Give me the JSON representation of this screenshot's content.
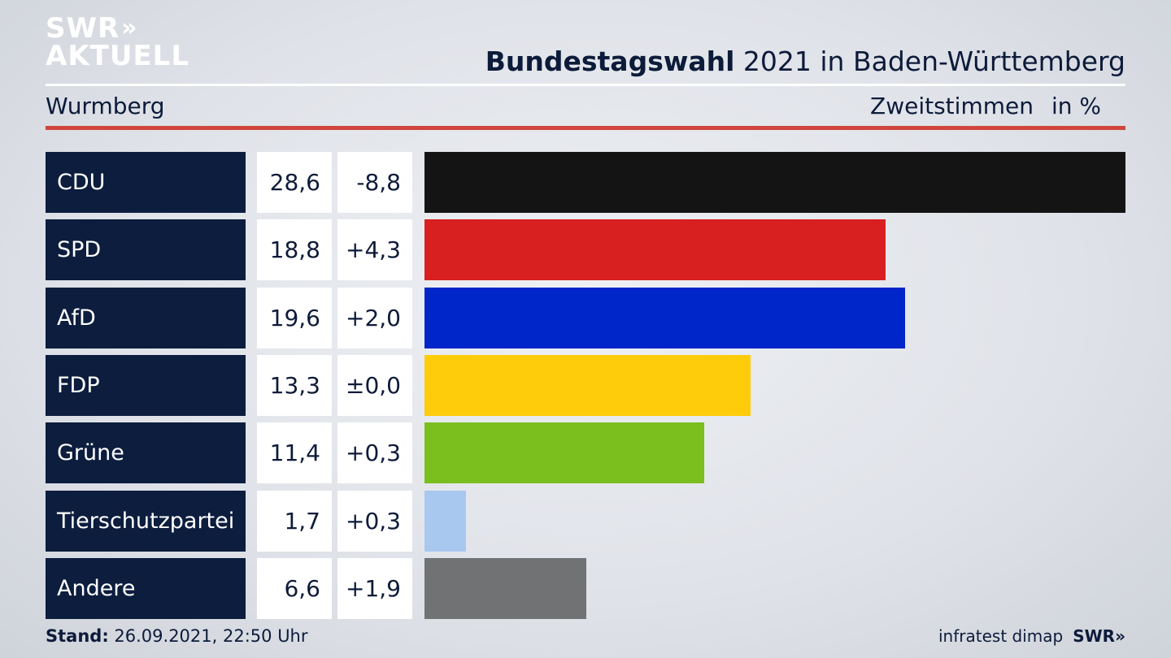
{
  "header": {
    "logo_line1": "SWR",
    "logo_chevrons": "»",
    "logo_line2": "AKTUELL",
    "title_bold": "Bundestagswahl",
    "title_rest": "2021 in Baden-Württemberg",
    "place": "Wurmberg",
    "metric": "Zweitstimmen",
    "unit": "in %"
  },
  "chart_data": {
    "type": "bar",
    "orientation": "horizontal",
    "categories": [
      "CDU",
      "SPD",
      "AfD",
      "FDP",
      "Grüne",
      "Tierschutzpartei",
      "Andere"
    ],
    "values": [
      28.6,
      18.8,
      19.6,
      13.3,
      11.4,
      1.7,
      6.6
    ],
    "value_labels": [
      "28,6",
      "18,8",
      "19,6",
      "13,3",
      "11,4",
      "1,7",
      "6,6"
    ],
    "change_labels": [
      "-8,8",
      "+4,3",
      "+2,0",
      "±0,0",
      "+0,3",
      "+0,3",
      "+1,9"
    ],
    "changes": [
      -8.8,
      4.3,
      2.0,
      0.0,
      0.3,
      0.3,
      1.9
    ],
    "colors": [
      "#141414",
      "#d82020",
      "#0025c9",
      "#fecc0a",
      "#7abf1e",
      "#a9c8f0",
      "#717274"
    ],
    "xlim": [
      0,
      28.6
    ]
  },
  "footer": {
    "stand_label": "Stand:",
    "stand_value": "26.09.2021, 22:50 Uhr",
    "source": "infratest dimap",
    "brand": "SWR»"
  }
}
